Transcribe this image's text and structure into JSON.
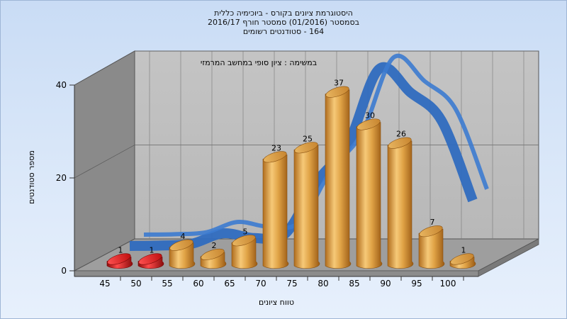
{
  "chart_data": {
    "type": "bar",
    "title": [
      "היסטוגרמת ציונים בקורס - ביוכימיה כללית",
      "בסמסטר (01/2016) סמסטר חורף 2016/17",
      "164 - סטודנטים רשומים"
    ],
    "subtitle": "במשימה : ציון סופי במחשב המרמזי",
    "xlabel": "טווח ציונים",
    "ylabel": "מספר סטודנטים",
    "ylim": [
      0,
      40
    ],
    "yticks": [
      0,
      20,
      40
    ],
    "categories": [
      "45",
      "50",
      "55",
      "60",
      "65",
      "70",
      "75",
      "80",
      "85",
      "90",
      "95",
      "100"
    ],
    "series": [
      {
        "values": [
          1,
          1,
          4,
          2,
          5,
          23,
          25,
          37,
          30,
          26,
          7,
          1
        ],
        "colors": [
          "#d81a1a",
          "#d81a1a",
          "#e3a548",
          "#e3a548",
          "#e3a548",
          "#e3a548",
          "#e3a548",
          "#e3a548",
          "#e3a548",
          "#e3a548",
          "#e3a548",
          "#e3a548"
        ]
      }
    ],
    "curve": {
      "type": "normal-distribution",
      "color": "#2f6bbf",
      "x": [
        45,
        50,
        55,
        60,
        65,
        70,
        75,
        80,
        85,
        90,
        95,
        100
      ],
      "values": [
        0.3,
        0.4,
        0.8,
        3,
        2,
        3,
        14,
        22,
        38,
        33,
        27,
        10
      ]
    },
    "grid": true,
    "legend": "none"
  }
}
